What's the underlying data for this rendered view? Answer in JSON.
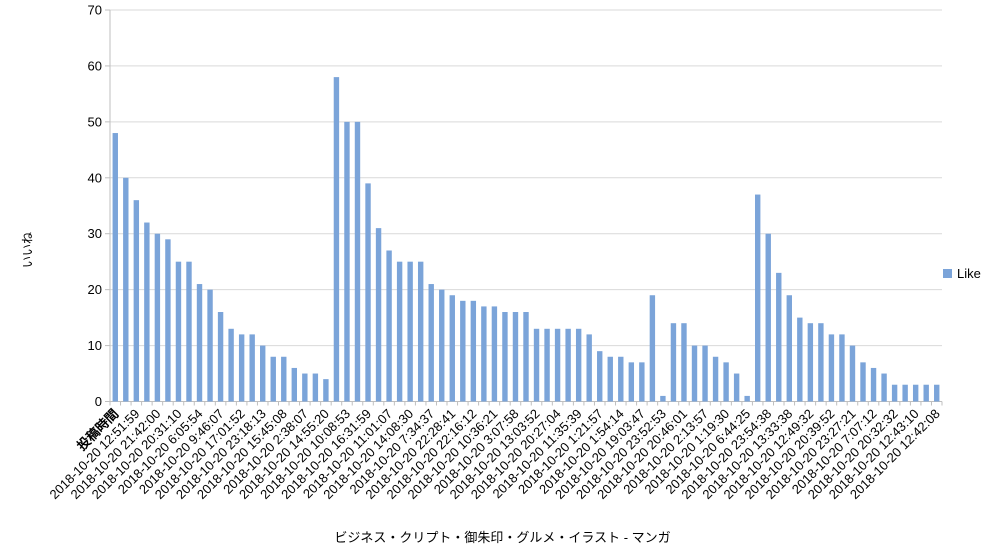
{
  "chart_data": {
    "type": "bar",
    "title": "",
    "ylabel": "いいね",
    "xlabel_caption": "ビジネス・クリプト・御朱印・グルメ・イラスト - マンガ",
    "ylim": [
      0,
      70
    ],
    "y_ticks": [
      0,
      10,
      20,
      30,
      40,
      50,
      60,
      70
    ],
    "grid": true,
    "legend_position": "right",
    "x_label_interval": 2,
    "x_first_label_bold": true,
    "series": [
      {
        "name": "Like",
        "values": [
          48,
          40,
          36,
          32,
          30,
          29,
          25,
          25,
          21,
          20,
          16,
          13,
          12,
          12,
          10,
          8,
          8,
          6,
          5,
          5,
          4,
          58,
          50,
          50,
          39,
          31,
          27,
          25,
          25,
          25,
          21,
          20,
          19,
          18,
          18,
          17,
          17,
          16,
          16,
          16,
          13,
          13,
          13,
          13,
          13,
          12,
          9,
          8,
          8,
          7,
          7,
          19,
          1,
          14,
          14,
          10,
          10,
          8,
          7,
          5,
          1,
          37,
          30,
          23,
          19,
          15,
          14,
          14,
          12,
          12,
          10,
          7,
          6,
          5,
          3,
          3,
          3,
          3,
          3
        ]
      }
    ],
    "x_tick_labels": [
      "投稿時間",
      "2018-10-20 12:51:59",
      "2018-10-20 21:42:00",
      "2018-10-20 20:31:10",
      "2018-10-20 6:05:54",
      "2018-10-20 9:46:07",
      "2018-10-20 17:01:52",
      "2018-10-20 23:18:13",
      "2018-10-20 15:45:08",
      "2018-10-20 2:38:07",
      "2018-10-20 14:55:20",
      "2018-10-20 10:08:53",
      "2018-10-20 16:31:59",
      "2018-10-20 11:01:07",
      "2018-10-20 14:08:30",
      "2018-10-20 7:34:37",
      "2018-10-20 22:28:41",
      "2018-10-20 22:16:12",
      "2018-10-20 10:36:21",
      "2018-10-20 3:07:58",
      "2018-10-20 13:03:52",
      "2018-10-20 20:27:04",
      "2018-10-20 11:35:39",
      "2018-10-20 1:21:57",
      "2018-10-20 1:54:14",
      "2018-10-20 19:03:47",
      "2018-10-20 23:52:53",
      "2018-10-20 20:46:01",
      "2018-10-20 2:13:57",
      "2018-10-20 1:19:30",
      "2018-10-20 6:44:25",
      "2018-10-20 23:54:38",
      "2018-10-20 13:33:38",
      "2018-10-20 12:49:32",
      "2018-10-20 20:39:52",
      "2018-10-20 23:27:21",
      "2018-10-20 7:07:12",
      "2018-10-20 20:32:32",
      "2018-10-20 12:43:10",
      "2018-10-20 12:42:08"
    ],
    "colors": {
      "bar": "#7BA4D9",
      "gridline": "#D9D9D9",
      "axis": "#BFBFBF",
      "text": "#000000"
    }
  }
}
